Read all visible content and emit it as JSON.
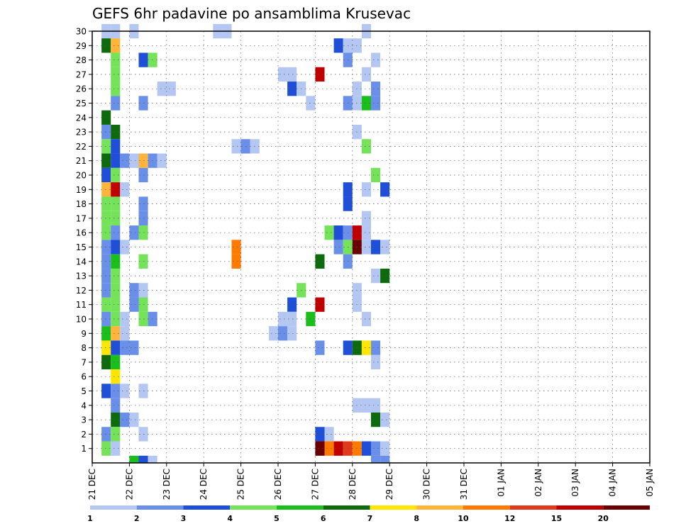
{
  "chart_data": {
    "type": "heatmap",
    "title": "GEFS 6hr padavine po ansamblima Krusevac",
    "xlabel": "",
    "ylabel": "",
    "x_ticks": [
      "21 DEC",
      "22 DEC",
      "23 DEC",
      "24 DEC",
      "25 DEC",
      "26 DEC",
      "27 DEC",
      "28 DEC",
      "29 DEC",
      "30 DEC",
      "31 DEC",
      "01 JAN",
      "02 JAN",
      "03 JAN",
      "04 JAN",
      "05 JAN"
    ],
    "y_ticks": [
      "1",
      "2",
      "3",
      "4",
      "5",
      "6",
      "7",
      "8",
      "9",
      "10",
      "11",
      "12",
      "13",
      "14",
      "15",
      "16",
      "17",
      "18",
      "19",
      "20",
      "21",
      "22",
      "23",
      "24",
      "25",
      "26",
      "27",
      "28",
      "29",
      "30"
    ],
    "x_range_steps": [
      0,
      60
    ],
    "y_range": [
      0,
      30
    ],
    "steps_per_day": 4,
    "grid": true,
    "colorbar": {
      "labels": [
        "1",
        "2",
        "3",
        "4",
        "5",
        "6",
        "7",
        "8",
        "10",
        "12",
        "15",
        "20"
      ],
      "colors": [
        "#b4c6f2",
        "#6a8fe8",
        "#1f4fd8",
        "#74e35a",
        "#1bbf1b",
        "#0d6b0d",
        "#ffe600",
        "#ffb43c",
        "#ff7a00",
        "#e03a1c",
        "#c00000",
        "#6a0000"
      ]
    },
    "cells": [
      [
        1,
        30,
        1
      ],
      [
        2,
        30,
        1
      ],
      [
        4,
        30,
        1
      ],
      [
        13,
        30,
        1
      ],
      [
        14,
        30,
        1
      ],
      [
        29,
        30,
        1
      ],
      [
        1,
        29,
        6
      ],
      [
        2,
        29,
        8
      ],
      [
        26,
        29,
        3
      ],
      [
        27,
        29,
        1
      ],
      [
        28,
        29,
        1
      ],
      [
        2,
        28,
        4
      ],
      [
        5,
        28,
        3
      ],
      [
        6,
        28,
        4
      ],
      [
        27,
        28,
        2
      ],
      [
        30,
        28,
        1
      ],
      [
        2,
        27,
        4
      ],
      [
        20,
        27,
        1
      ],
      [
        21,
        27,
        1
      ],
      [
        24,
        27,
        11
      ],
      [
        29,
        27,
        1
      ],
      [
        2,
        26,
        4
      ],
      [
        7,
        26,
        1
      ],
      [
        8,
        26,
        1
      ],
      [
        21,
        26,
        3
      ],
      [
        22,
        26,
        1
      ],
      [
        28,
        26,
        1
      ],
      [
        30,
        26,
        2
      ],
      [
        2,
        25,
        2
      ],
      [
        5,
        25,
        2
      ],
      [
        23,
        25,
        1
      ],
      [
        27,
        25,
        2
      ],
      [
        28,
        25,
        1
      ],
      [
        29,
        25,
        5
      ],
      [
        30,
        25,
        2
      ],
      [
        1,
        24,
        6
      ],
      [
        1,
        23,
        2
      ],
      [
        2,
        23,
        6
      ],
      [
        28,
        23,
        1
      ],
      [
        1,
        22,
        4
      ],
      [
        2,
        22,
        3
      ],
      [
        15,
        22,
        1
      ],
      [
        16,
        22,
        2
      ],
      [
        17,
        22,
        1
      ],
      [
        29,
        22,
        4
      ],
      [
        1,
        21,
        6
      ],
      [
        2,
        21,
        3
      ],
      [
        3,
        21,
        2
      ],
      [
        4,
        21,
        1
      ],
      [
        5,
        21,
        8
      ],
      [
        6,
        21,
        2
      ],
      [
        7,
        21,
        1
      ],
      [
        1,
        20,
        3
      ],
      [
        2,
        20,
        4
      ],
      [
        5,
        20,
        2
      ],
      [
        30,
        20,
        4
      ],
      [
        1,
        19,
        8
      ],
      [
        2,
        19,
        11
      ],
      [
        3,
        19,
        1
      ],
      [
        27,
        19,
        3
      ],
      [
        29,
        19,
        1
      ],
      [
        31,
        19,
        3
      ],
      [
        1,
        18,
        4
      ],
      [
        2,
        18,
        4
      ],
      [
        5,
        18,
        2
      ],
      [
        27,
        18,
        3
      ],
      [
        1,
        17,
        4
      ],
      [
        2,
        17,
        4
      ],
      [
        5,
        17,
        2
      ],
      [
        29,
        17,
        1
      ],
      [
        1,
        16,
        4
      ],
      [
        2,
        16,
        2
      ],
      [
        4,
        16,
        2
      ],
      [
        5,
        16,
        4
      ],
      [
        25,
        16,
        4
      ],
      [
        26,
        16,
        3
      ],
      [
        27,
        16,
        2
      ],
      [
        28,
        16,
        11
      ],
      [
        29,
        16,
        1
      ],
      [
        1,
        15,
        2
      ],
      [
        2,
        15,
        3
      ],
      [
        3,
        15,
        1
      ],
      [
        15,
        15,
        9
      ],
      [
        26,
        15,
        2
      ],
      [
        27,
        15,
        4
      ],
      [
        28,
        15,
        12
      ],
      [
        29,
        15,
        1
      ],
      [
        30,
        15,
        3
      ],
      [
        31,
        15,
        1
      ],
      [
        1,
        14,
        2
      ],
      [
        2,
        14,
        5
      ],
      [
        5,
        14,
        4
      ],
      [
        15,
        14,
        9
      ],
      [
        24,
        14,
        6
      ],
      [
        27,
        14,
        2
      ],
      [
        1,
        13,
        2
      ],
      [
        2,
        13,
        4
      ],
      [
        30,
        13,
        1
      ],
      [
        31,
        13,
        6
      ],
      [
        1,
        12,
        2
      ],
      [
        2,
        12,
        4
      ],
      [
        4,
        12,
        2
      ],
      [
        5,
        12,
        1
      ],
      [
        22,
        12,
        4
      ],
      [
        28,
        12,
        1
      ],
      [
        1,
        11,
        4
      ],
      [
        2,
        11,
        4
      ],
      [
        4,
        11,
        2
      ],
      [
        5,
        11,
        4
      ],
      [
        21,
        11,
        3
      ],
      [
        24,
        11,
        11
      ],
      [
        28,
        11,
        1
      ],
      [
        1,
        10,
        2
      ],
      [
        2,
        10,
        4
      ],
      [
        3,
        10,
        1
      ],
      [
        5,
        10,
        4
      ],
      [
        6,
        10,
        2
      ],
      [
        20,
        10,
        1
      ],
      [
        21,
        10,
        1
      ],
      [
        23,
        10,
        5
      ],
      [
        29,
        10,
        1
      ],
      [
        1,
        9,
        5
      ],
      [
        2,
        9,
        8
      ],
      [
        3,
        9,
        1
      ],
      [
        19,
        9,
        1
      ],
      [
        20,
        9,
        2
      ],
      [
        21,
        9,
        1
      ],
      [
        1,
        8,
        7
      ],
      [
        2,
        8,
        3
      ],
      [
        3,
        8,
        2
      ],
      [
        4,
        8,
        2
      ],
      [
        24,
        8,
        2
      ],
      [
        27,
        8,
        3
      ],
      [
        28,
        8,
        6
      ],
      [
        29,
        8,
        7
      ],
      [
        30,
        8,
        2
      ],
      [
        1,
        7,
        6
      ],
      [
        2,
        7,
        5
      ],
      [
        30,
        7,
        1
      ],
      [
        2,
        6,
        7
      ],
      [
        1,
        5,
        3
      ],
      [
        2,
        5,
        2
      ],
      [
        3,
        5,
        1
      ],
      [
        5,
        5,
        1
      ],
      [
        2,
        4,
        2
      ],
      [
        28,
        4,
        1
      ],
      [
        29,
        4,
        1
      ],
      [
        30,
        4,
        1
      ],
      [
        2,
        3,
        6
      ],
      [
        3,
        3,
        2
      ],
      [
        4,
        3,
        1
      ],
      [
        30,
        3,
        6
      ],
      [
        31,
        3,
        1
      ],
      [
        1,
        2,
        2
      ],
      [
        2,
        2,
        4
      ],
      [
        5,
        2,
        1
      ],
      [
        24,
        2,
        3
      ],
      [
        25,
        2,
        1
      ],
      [
        1,
        1,
        4
      ],
      [
        2,
        1,
        1
      ],
      [
        24,
        1,
        12
      ],
      [
        25,
        1,
        9
      ],
      [
        26,
        1,
        11
      ],
      [
        27,
        1,
        10
      ],
      [
        28,
        1,
        9
      ],
      [
        29,
        1,
        3
      ],
      [
        30,
        1,
        2
      ],
      [
        31,
        1,
        1
      ],
      [
        4,
        0,
        5
      ],
      [
        5,
        0,
        3
      ],
      [
        6,
        0,
        1
      ],
      [
        30,
        0,
        2
      ],
      [
        31,
        0,
        2
      ]
    ]
  }
}
